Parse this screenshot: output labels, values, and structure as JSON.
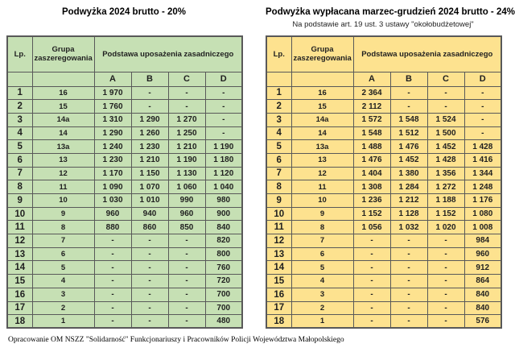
{
  "colors": {
    "left_table_bg": "#c6e0b4",
    "right_table_bg": "#fde28f",
    "border": "#595959"
  },
  "footer_text": "Opracowanie OM NSZZ \"Solidarność\" Funkcjonariuszy i Pracowników Policji Województwa Małopolskiego",
  "tables": [
    {
      "title": "Podwyżka 2024 brutto - 20%",
      "subtitle": "",
      "headers": {
        "lp": "Lp.",
        "group": "Grupa zaszeregowania",
        "base": "Podstawa uposażenia zasadniczego",
        "cols": [
          "A",
          "B",
          "C",
          "D"
        ]
      },
      "rows": [
        [
          "1",
          "16",
          "1 970",
          "-",
          "-",
          "-"
        ],
        [
          "2",
          "15",
          "1 760",
          "-",
          "-",
          "-"
        ],
        [
          "3",
          "14a",
          "1 310",
          "1 290",
          "1 270",
          "-"
        ],
        [
          "4",
          "14",
          "1 290",
          "1 260",
          "1 250",
          "-"
        ],
        [
          "5",
          "13a",
          "1 240",
          "1 230",
          "1 210",
          "1 190"
        ],
        [
          "6",
          "13",
          "1 230",
          "1 210",
          "1 190",
          "1 180"
        ],
        [
          "7",
          "12",
          "1 170",
          "1 150",
          "1 130",
          "1 120"
        ],
        [
          "8",
          "11",
          "1 090",
          "1 070",
          "1 060",
          "1 040"
        ],
        [
          "9",
          "10",
          "1 030",
          "1 010",
          "990",
          "980"
        ],
        [
          "10",
          "9",
          "960",
          "940",
          "960",
          "900"
        ],
        [
          "11",
          "8",
          "880",
          "860",
          "850",
          "840"
        ],
        [
          "12",
          "7",
          "-",
          "-",
          "-",
          "820"
        ],
        [
          "13",
          "6",
          "-",
          "-",
          "-",
          "800"
        ],
        [
          "14",
          "5",
          "-",
          "-",
          "-",
          "760"
        ],
        [
          "15",
          "4",
          "-",
          "-",
          "-",
          "720"
        ],
        [
          "16",
          "3",
          "-",
          "-",
          "-",
          "700"
        ],
        [
          "17",
          "2",
          "-",
          "-",
          "-",
          "700"
        ],
        [
          "18",
          "1",
          "-",
          "-",
          "-",
          "480"
        ]
      ]
    },
    {
      "title": "Podwyżka wypłacana marzec-grudzień 2024 brutto - 24%",
      "subtitle": "Na podstawie art. 19 ust. 3 ustawy \"okołobudżetowej\"",
      "headers": {
        "lp": "Lp.",
        "group": "Grupa zaszeregowania",
        "base": "Podstawa uposażenia zasadniczego",
        "cols": [
          "A",
          "B",
          "C",
          "D"
        ]
      },
      "rows": [
        [
          "1",
          "16",
          "2 364",
          "-",
          "-",
          "-"
        ],
        [
          "2",
          "15",
          "2 112",
          "-",
          "-",
          "-"
        ],
        [
          "3",
          "14a",
          "1 572",
          "1 548",
          "1 524",
          "-"
        ],
        [
          "4",
          "14",
          "1 548",
          "1 512",
          "1 500",
          "-"
        ],
        [
          "5",
          "13a",
          "1 488",
          "1 476",
          "1 452",
          "1 428"
        ],
        [
          "6",
          "13",
          "1 476",
          "1 452",
          "1 428",
          "1 416"
        ],
        [
          "7",
          "12",
          "1 404",
          "1 380",
          "1 356",
          "1 344"
        ],
        [
          "8",
          "11",
          "1 308",
          "1 284",
          "1 272",
          "1 248"
        ],
        [
          "9",
          "10",
          "1 236",
          "1 212",
          "1 188",
          "1 176"
        ],
        [
          "10",
          "9",
          "1 152",
          "1 128",
          "1 152",
          "1 080"
        ],
        [
          "11",
          "8",
          "1 056",
          "1 032",
          "1 020",
          "1 008"
        ],
        [
          "12",
          "7",
          "-",
          "-",
          "-",
          "984"
        ],
        [
          "13",
          "6",
          "-",
          "-",
          "-",
          "960"
        ],
        [
          "14",
          "5",
          "-",
          "-",
          "-",
          "912"
        ],
        [
          "15",
          "4",
          "-",
          "-",
          "-",
          "864"
        ],
        [
          "16",
          "3",
          "-",
          "-",
          "-",
          "840"
        ],
        [
          "17",
          "2",
          "-",
          "-",
          "-",
          "840"
        ],
        [
          "18",
          "1",
          "-",
          "-",
          "-",
          "576"
        ]
      ]
    }
  ]
}
